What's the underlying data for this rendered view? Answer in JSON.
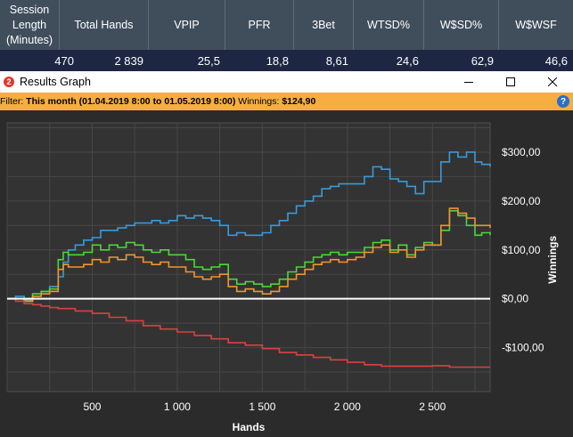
{
  "stats": {
    "headers": [
      "Session Length (Minutes)",
      "Total Hands",
      "VPIP",
      "PFR",
      "3Bet",
      "WTSD%",
      "W$SD%",
      "W$WSF"
    ],
    "values": [
      "470",
      "2 839",
      "25,5",
      "18,8",
      "8,61",
      "24,6",
      "62,9",
      "46,6"
    ]
  },
  "window": {
    "title": "Results Graph",
    "app_icon": "2",
    "minimize_icon": "minimize-icon",
    "maximize_icon": "maximize-icon",
    "close_icon": "close-icon"
  },
  "filter": {
    "label": "Filter:",
    "range": "This month (01.04.2019 8:00 to 01.05.2019 8:00)",
    "winnings_label": "Winnings:",
    "winnings_value": "$124,90",
    "help": "?"
  },
  "chart_data": {
    "type": "line",
    "xlabel": "Hands",
    "ylabel": "Winnings",
    "xlim": [
      0,
      2839
    ],
    "ylim": [
      -190,
      360
    ],
    "x_ticks": [
      500,
      1000,
      1500,
      2000,
      2500
    ],
    "x_tick_labels": [
      "500",
      "1 000",
      "1 500",
      "2 000",
      "2 500"
    ],
    "y_ticks": [
      300,
      200,
      100,
      0,
      -100
    ],
    "y_tick_labels": [
      "$300,00",
      "$200,00",
      "$100,00",
      "$0,00",
      "-$100,00"
    ],
    "grid": true,
    "series": [
      {
        "color": "#3a9ad9",
        "points": [
          [
            0,
            0
          ],
          [
            50,
            5
          ],
          [
            100,
            -2
          ],
          [
            150,
            10
          ],
          [
            200,
            15
          ],
          [
            250,
            25
          ],
          [
            300,
            45
          ],
          [
            330,
            75
          ],
          [
            360,
            100
          ],
          [
            400,
            110
          ],
          [
            450,
            120
          ],
          [
            500,
            125
          ],
          [
            550,
            140
          ],
          [
            600,
            140
          ],
          [
            650,
            145
          ],
          [
            700,
            150
          ],
          [
            750,
            155
          ],
          [
            800,
            155
          ],
          [
            850,
            160
          ],
          [
            900,
            155
          ],
          [
            950,
            160
          ],
          [
            1000,
            170
          ],
          [
            1050,
            165
          ],
          [
            1100,
            170
          ],
          [
            1150,
            165
          ],
          [
            1200,
            160
          ],
          [
            1250,
            150
          ],
          [
            1300,
            130
          ],
          [
            1350,
            135
          ],
          [
            1400,
            130
          ],
          [
            1450,
            130
          ],
          [
            1500,
            135
          ],
          [
            1550,
            150
          ],
          [
            1600,
            160
          ],
          [
            1650,
            175
          ],
          [
            1700,
            190
          ],
          [
            1750,
            200
          ],
          [
            1800,
            210
          ],
          [
            1850,
            225
          ],
          [
            1900,
            230
          ],
          [
            1950,
            235
          ],
          [
            2000,
            235
          ],
          [
            2050,
            235
          ],
          [
            2100,
            250
          ],
          [
            2150,
            270
          ],
          [
            2200,
            265
          ],
          [
            2250,
            245
          ],
          [
            2300,
            240
          ],
          [
            2350,
            230
          ],
          [
            2400,
            215
          ],
          [
            2450,
            240
          ],
          [
            2500,
            240
          ],
          [
            2550,
            280
          ],
          [
            2600,
            300
          ],
          [
            2650,
            290
          ],
          [
            2700,
            300
          ],
          [
            2750,
            280
          ],
          [
            2790,
            275
          ],
          [
            2839,
            270
          ]
        ]
      },
      {
        "color": "#4ed63a",
        "points": [
          [
            0,
            0
          ],
          [
            50,
            0
          ],
          [
            100,
            -5
          ],
          [
            150,
            10
          ],
          [
            200,
            15
          ],
          [
            250,
            20
          ],
          [
            300,
            80
          ],
          [
            330,
            95
          ],
          [
            360,
            90
          ],
          [
            400,
            90
          ],
          [
            450,
            95
          ],
          [
            500,
            110
          ],
          [
            550,
            100
          ],
          [
            600,
            110
          ],
          [
            650,
            105
          ],
          [
            700,
            115
          ],
          [
            750,
            110
          ],
          [
            800,
            100
          ],
          [
            850,
            95
          ],
          [
            900,
            100
          ],
          [
            950,
            90
          ],
          [
            1000,
            90
          ],
          [
            1050,
            80
          ],
          [
            1100,
            65
          ],
          [
            1150,
            60
          ],
          [
            1200,
            65
          ],
          [
            1250,
            70
          ],
          [
            1300,
            40
          ],
          [
            1350,
            30
          ],
          [
            1400,
            35
          ],
          [
            1450,
            30
          ],
          [
            1500,
            25
          ],
          [
            1550,
            30
          ],
          [
            1600,
            40
          ],
          [
            1650,
            55
          ],
          [
            1700,
            65
          ],
          [
            1750,
            75
          ],
          [
            1800,
            85
          ],
          [
            1850,
            90
          ],
          [
            1900,
            95
          ],
          [
            1950,
            90
          ],
          [
            2000,
            95
          ],
          [
            2050,
            95
          ],
          [
            2100,
            105
          ],
          [
            2150,
            115
          ],
          [
            2200,
            120
          ],
          [
            2250,
            100
          ],
          [
            2300,
            110
          ],
          [
            2350,
            90
          ],
          [
            2400,
            105
          ],
          [
            2450,
            115
          ],
          [
            2500,
            110
          ],
          [
            2550,
            140
          ],
          [
            2600,
            180
          ],
          [
            2650,
            170
          ],
          [
            2700,
            150
          ],
          [
            2750,
            130
          ],
          [
            2790,
            135
          ],
          [
            2839,
            130
          ]
        ]
      },
      {
        "color": "#f0962b",
        "points": [
          [
            0,
            0
          ],
          [
            50,
            0
          ],
          [
            100,
            -5
          ],
          [
            150,
            5
          ],
          [
            200,
            10
          ],
          [
            250,
            15
          ],
          [
            300,
            60
          ],
          [
            330,
            70
          ],
          [
            360,
            65
          ],
          [
            400,
            65
          ],
          [
            450,
            70
          ],
          [
            500,
            80
          ],
          [
            550,
            75
          ],
          [
            600,
            85
          ],
          [
            650,
            80
          ],
          [
            700,
            90
          ],
          [
            750,
            85
          ],
          [
            800,
            75
          ],
          [
            850,
            70
          ],
          [
            900,
            75
          ],
          [
            950,
            65
          ],
          [
            1000,
            65
          ],
          [
            1050,
            55
          ],
          [
            1100,
            45
          ],
          [
            1150,
            40
          ],
          [
            1200,
            45
          ],
          [
            1250,
            50
          ],
          [
            1300,
            25
          ],
          [
            1350,
            15
          ],
          [
            1400,
            20
          ],
          [
            1450,
            15
          ],
          [
            1500,
            10
          ],
          [
            1550,
            15
          ],
          [
            1600,
            25
          ],
          [
            1650,
            40
          ],
          [
            1700,
            50
          ],
          [
            1750,
            60
          ],
          [
            1800,
            70
          ],
          [
            1850,
            75
          ],
          [
            1900,
            80
          ],
          [
            1950,
            75
          ],
          [
            2000,
            80
          ],
          [
            2050,
            85
          ],
          [
            2100,
            95
          ],
          [
            2150,
            105
          ],
          [
            2200,
            110
          ],
          [
            2250,
            95
          ],
          [
            2300,
            100
          ],
          [
            2350,
            85
          ],
          [
            2400,
            100
          ],
          [
            2450,
            110
          ],
          [
            2500,
            110
          ],
          [
            2550,
            150
          ],
          [
            2600,
            185
          ],
          [
            2650,
            175
          ],
          [
            2700,
            165
          ],
          [
            2750,
            150
          ],
          [
            2790,
            150
          ],
          [
            2839,
            145
          ]
        ]
      },
      {
        "color": "#d9423f",
        "points": [
          [
            0,
            0
          ],
          [
            50,
            -5
          ],
          [
            100,
            -10
          ],
          [
            150,
            -12
          ],
          [
            200,
            -15
          ],
          [
            250,
            -18
          ],
          [
            300,
            -20
          ],
          [
            400,
            -25
          ],
          [
            500,
            -30
          ],
          [
            600,
            -38
          ],
          [
            700,
            -45
          ],
          [
            800,
            -55
          ],
          [
            900,
            -62
          ],
          [
            1000,
            -68
          ],
          [
            1100,
            -75
          ],
          [
            1200,
            -82
          ],
          [
            1300,
            -90
          ],
          [
            1400,
            -95
          ],
          [
            1500,
            -102
          ],
          [
            1600,
            -110
          ],
          [
            1700,
            -115
          ],
          [
            1800,
            -120
          ],
          [
            1900,
            -125
          ],
          [
            2000,
            -130
          ],
          [
            2100,
            -135
          ],
          [
            2200,
            -138
          ],
          [
            2300,
            -138
          ],
          [
            2400,
            -138
          ],
          [
            2500,
            -137
          ],
          [
            2600,
            -140
          ],
          [
            2700,
            -140
          ],
          [
            2800,
            -140
          ],
          [
            2839,
            -140
          ]
        ]
      }
    ]
  }
}
